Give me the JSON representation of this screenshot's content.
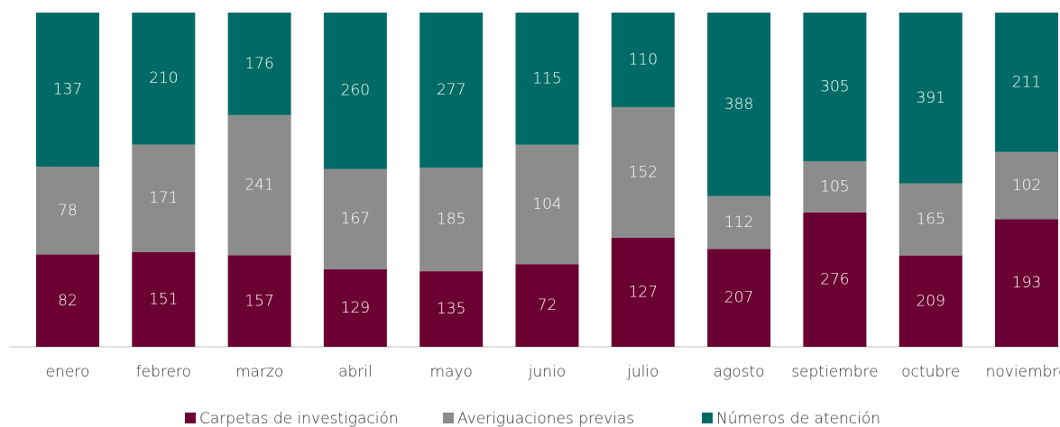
{
  "chart_data": {
    "type": "bar",
    "stacking": "percent",
    "categories": [
      "enero",
      "febrero",
      "marzo",
      "abril",
      "mayo",
      "junio",
      "julio",
      "agosto",
      "septiembre",
      "octubre",
      "noviembre"
    ],
    "series": [
      {
        "name": "Carpetas de investigación",
        "color": "#6b0033",
        "values": [
          82,
          151,
          157,
          129,
          135,
          72,
          127,
          207,
          276,
          209,
          193
        ]
      },
      {
        "name": "Averiguaciones previas",
        "color": "#8c8c8c",
        "values": [
          78,
          171,
          241,
          167,
          185,
          104,
          152,
          112,
          105,
          165,
          102
        ]
      },
      {
        "name": "Números de atención",
        "color": "#006b66",
        "values": [
          137,
          210,
          176,
          260,
          277,
          115,
          110,
          388,
          305,
          391,
          211
        ]
      }
    ],
    "legend": "bottom"
  }
}
